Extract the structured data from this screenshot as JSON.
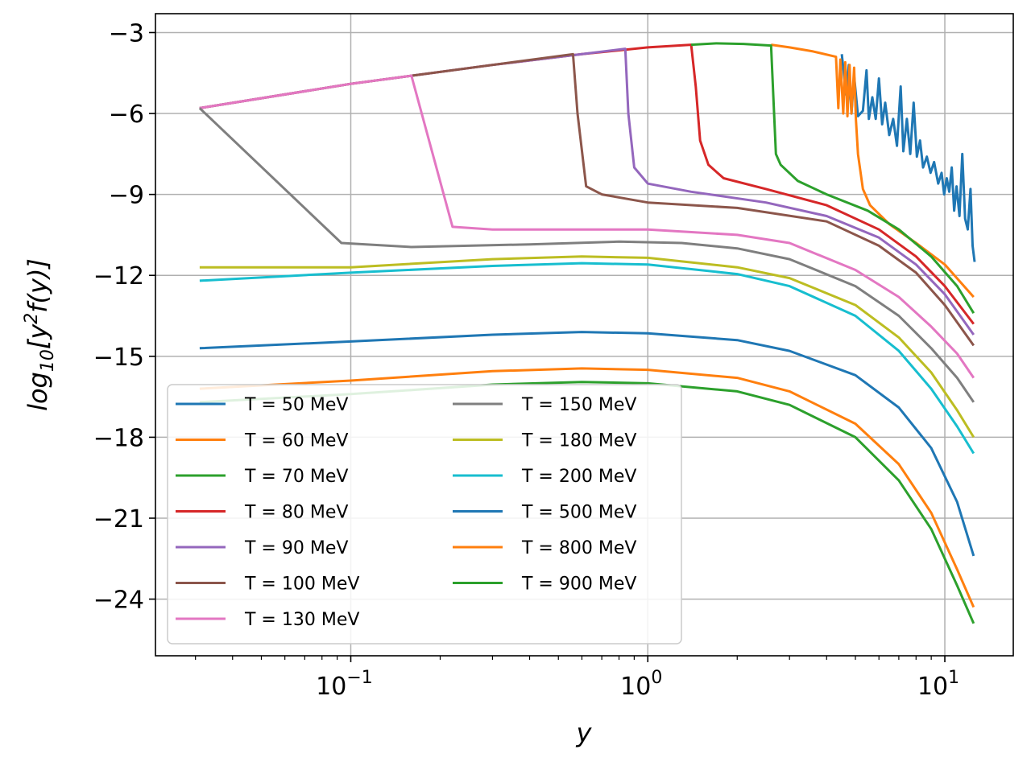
{
  "chart_data": {
    "type": "line",
    "title": "",
    "xlabel": "y",
    "ylabel": "log10[y^2 f(y)]",
    "xscale": "log",
    "xlim": [
      0.022,
      17
    ],
    "ylim": [
      -26.1,
      -2.3
    ],
    "grid": true,
    "legend_placement": "lower-left",
    "legend_columns": 2,
    "x_ticks": [
      {
        "value": 0.1,
        "base": "10",
        "exp": "−1"
      },
      {
        "value": 1,
        "base": "10",
        "exp": "0"
      },
      {
        "value": 10,
        "base": "10",
        "exp": "1"
      }
    ],
    "y_ticks": [
      {
        "value": -3,
        "label": "−3"
      },
      {
        "value": -6,
        "label": "−6"
      },
      {
        "value": -9,
        "label": "−9"
      },
      {
        "value": -12,
        "label": "−12"
      },
      {
        "value": -15,
        "label": "−15"
      },
      {
        "value": -18,
        "label": "−18"
      },
      {
        "value": -21,
        "label": "−21"
      },
      {
        "value": -24,
        "label": "−24"
      }
    ],
    "series": [
      {
        "name": "T = 50 MeV",
        "color": "#1f77b4",
        "points": [
          [
            0.031,
            -14.7
          ],
          [
            0.1,
            -14.45
          ],
          [
            0.3,
            -14.2
          ],
          [
            0.6,
            -14.1
          ],
          [
            1.0,
            -14.15
          ],
          [
            2.0,
            -14.4
          ],
          [
            3.0,
            -14.8
          ],
          [
            5.0,
            -15.7
          ],
          [
            7.0,
            -16.9
          ],
          [
            9.0,
            -18.4
          ],
          [
            11.0,
            -20.4
          ],
          [
            12.5,
            -22.4
          ]
        ]
      },
      {
        "name": "T = 60 MeV",
        "color": "#ff7f0e",
        "points": [
          [
            0.031,
            -16.2
          ],
          [
            0.1,
            -15.9
          ],
          [
            0.3,
            -15.55
          ],
          [
            0.6,
            -15.45
          ],
          [
            1.0,
            -15.5
          ],
          [
            2.0,
            -15.8
          ],
          [
            3.0,
            -16.3
          ],
          [
            5.0,
            -17.5
          ],
          [
            7.0,
            -19.0
          ],
          [
            9.0,
            -20.8
          ],
          [
            11.0,
            -22.9
          ],
          [
            12.5,
            -24.3
          ]
        ]
      },
      {
        "name": "T = 70 MeV",
        "color": "#2ca02c",
        "points": [
          [
            0.031,
            -16.7
          ],
          [
            0.1,
            -16.4
          ],
          [
            0.3,
            -16.05
          ],
          [
            0.6,
            -15.95
          ],
          [
            1.0,
            -16.0
          ],
          [
            2.0,
            -16.3
          ],
          [
            3.0,
            -16.8
          ],
          [
            5.0,
            -18.0
          ],
          [
            7.0,
            -19.6
          ],
          [
            9.0,
            -21.4
          ],
          [
            11.0,
            -23.5
          ],
          [
            12.5,
            -24.9
          ]
        ]
      },
      {
        "name": "T = 80 MeV",
        "color": "#d62728",
        "points": [
          [
            0.031,
            -5.8
          ],
          [
            0.1,
            -4.9
          ],
          [
            0.3,
            -4.2
          ],
          [
            0.6,
            -3.8
          ],
          [
            1.0,
            -3.55
          ],
          [
            1.4,
            -3.45
          ],
          [
            1.45,
            -5.0
          ],
          [
            1.5,
            -7.0
          ],
          [
            1.6,
            -7.9
          ],
          [
            1.8,
            -8.4
          ],
          [
            2.5,
            -8.8
          ],
          [
            4.0,
            -9.4
          ],
          [
            6.0,
            -10.3
          ],
          [
            8.0,
            -11.3
          ],
          [
            10.0,
            -12.4
          ],
          [
            12.5,
            -13.8
          ]
        ]
      },
      {
        "name": "T = 90 MeV",
        "color": "#9467bd",
        "points": [
          [
            0.031,
            -5.8
          ],
          [
            0.1,
            -4.9
          ],
          [
            0.3,
            -4.2
          ],
          [
            0.6,
            -3.8
          ],
          [
            0.84,
            -3.6
          ],
          [
            0.86,
            -6.0
          ],
          [
            0.9,
            -8.0
          ],
          [
            1.0,
            -8.6
          ],
          [
            1.4,
            -8.9
          ],
          [
            2.5,
            -9.3
          ],
          [
            4.0,
            -9.8
          ],
          [
            6.0,
            -10.6
          ],
          [
            8.0,
            -11.6
          ],
          [
            10.0,
            -12.7
          ],
          [
            12.5,
            -14.2
          ]
        ]
      },
      {
        "name": "T = 100 MeV",
        "color": "#8c564b",
        "points": [
          [
            0.031,
            -5.8
          ],
          [
            0.1,
            -4.9
          ],
          [
            0.3,
            -4.2
          ],
          [
            0.56,
            -3.8
          ],
          [
            0.58,
            -6.0
          ],
          [
            0.62,
            -8.7
          ],
          [
            0.7,
            -9.0
          ],
          [
            1.0,
            -9.3
          ],
          [
            2.0,
            -9.5
          ],
          [
            4.0,
            -10.0
          ],
          [
            6.0,
            -10.9
          ],
          [
            8.0,
            -11.9
          ],
          [
            10.0,
            -13.1
          ],
          [
            12.5,
            -14.6
          ]
        ]
      },
      {
        "name": "T = 130 MeV",
        "color": "#e377c2",
        "points": [
          [
            0.031,
            -5.8
          ],
          [
            0.1,
            -4.9
          ],
          [
            0.16,
            -4.6
          ],
          [
            0.22,
            -10.2
          ],
          [
            0.3,
            -10.3
          ],
          [
            1.0,
            -10.3
          ],
          [
            2.0,
            -10.5
          ],
          [
            3.0,
            -10.8
          ],
          [
            5.0,
            -11.8
          ],
          [
            7.0,
            -12.8
          ],
          [
            9.0,
            -13.9
          ],
          [
            11.0,
            -14.9
          ],
          [
            12.5,
            -15.8
          ]
        ]
      },
      {
        "name": "T = 150 MeV",
        "color": "#7f7f7f",
        "points": [
          [
            0.031,
            -5.8
          ],
          [
            0.093,
            -10.8
          ],
          [
            0.16,
            -10.95
          ],
          [
            0.4,
            -10.85
          ],
          [
            0.8,
            -10.75
          ],
          [
            1.3,
            -10.8
          ],
          [
            2.0,
            -11.0
          ],
          [
            3.0,
            -11.4
          ],
          [
            5.0,
            -12.4
          ],
          [
            7.0,
            -13.5
          ],
          [
            9.0,
            -14.7
          ],
          [
            11.0,
            -15.8
          ],
          [
            12.5,
            -16.7
          ]
        ]
      },
      {
        "name": "T = 180 MeV",
        "color": "#bcbd22",
        "points": [
          [
            0.031,
            -11.7
          ],
          [
            0.1,
            -11.7
          ],
          [
            0.3,
            -11.4
          ],
          [
            0.6,
            -11.3
          ],
          [
            1.0,
            -11.35
          ],
          [
            2.0,
            -11.7
          ],
          [
            3.0,
            -12.1
          ],
          [
            5.0,
            -13.1
          ],
          [
            7.0,
            -14.3
          ],
          [
            9.0,
            -15.6
          ],
          [
            11.0,
            -17.0
          ],
          [
            12.5,
            -18.0
          ]
        ]
      },
      {
        "name": "T = 200 MeV",
        "color": "#17becf",
        "points": [
          [
            0.031,
            -12.2
          ],
          [
            0.1,
            -11.9
          ],
          [
            0.3,
            -11.65
          ],
          [
            0.6,
            -11.55
          ],
          [
            1.0,
            -11.6
          ],
          [
            2.0,
            -11.95
          ],
          [
            3.0,
            -12.4
          ],
          [
            5.0,
            -13.5
          ],
          [
            7.0,
            -14.8
          ],
          [
            9.0,
            -16.2
          ],
          [
            11.0,
            -17.6
          ],
          [
            12.5,
            -18.6
          ]
        ]
      },
      {
        "name": "T = 500 MeV",
        "color": "#1f77b4",
        "points": [
          [
            4.5,
            -3.8
          ],
          [
            4.65,
            -5.3
          ],
          [
            4.75,
            -4.2
          ],
          [
            4.85,
            -6.0
          ],
          [
            4.95,
            -4.6
          ],
          [
            5.1,
            -6.1
          ],
          [
            5.3,
            -5.9
          ],
          [
            5.45,
            -4.4
          ],
          [
            5.55,
            -6.2
          ],
          [
            5.7,
            -5.4
          ],
          [
            5.85,
            -6.2
          ],
          [
            6.0,
            -4.7
          ],
          [
            6.15,
            -6.4
          ],
          [
            6.3,
            -5.6
          ],
          [
            6.5,
            -6.8
          ],
          [
            6.7,
            -6.2
          ],
          [
            6.9,
            -7.2
          ],
          [
            7.1,
            -5.0
          ],
          [
            7.25,
            -7.4
          ],
          [
            7.45,
            -6.2
          ],
          [
            7.65,
            -7.5
          ],
          [
            7.85,
            -5.6
          ],
          [
            8.05,
            -7.6
          ],
          [
            8.25,
            -7.0
          ],
          [
            8.45,
            -8.0
          ],
          [
            8.7,
            -7.6
          ],
          [
            8.95,
            -8.2
          ],
          [
            9.2,
            -7.8
          ],
          [
            9.5,
            -8.6
          ],
          [
            9.75,
            -8.2
          ],
          [
            9.95,
            -9.0
          ],
          [
            10.15,
            -8.4
          ],
          [
            10.35,
            -8.9
          ],
          [
            10.55,
            -8.0
          ],
          [
            10.75,
            -9.6
          ],
          [
            10.95,
            -8.7
          ],
          [
            11.2,
            -9.8
          ],
          [
            11.45,
            -7.5
          ],
          [
            11.7,
            -9.9
          ],
          [
            11.95,
            -10.3
          ],
          [
            12.2,
            -8.8
          ],
          [
            12.4,
            -10.9
          ],
          [
            12.6,
            -11.5
          ]
        ]
      },
      {
        "name": "T = 800 MeV",
        "color": "#ff7f0e",
        "points": [
          [
            2.6,
            -3.45
          ],
          [
            3.0,
            -3.55
          ],
          [
            3.6,
            -3.7
          ],
          [
            4.3,
            -3.9
          ],
          [
            4.38,
            -5.8
          ],
          [
            4.45,
            -4.0
          ],
          [
            4.55,
            -6.0
          ],
          [
            4.62,
            -4.1
          ],
          [
            4.7,
            -6.1
          ],
          [
            4.78,
            -4.2
          ],
          [
            4.85,
            -6.0
          ],
          [
            4.95,
            -4.3
          ],
          [
            5.02,
            -6.2
          ],
          [
            5.1,
            -7.5
          ],
          [
            5.3,
            -8.8
          ],
          [
            5.6,
            -9.4
          ],
          [
            6.5,
            -10.1
          ],
          [
            8.0,
            -10.8
          ],
          [
            10.0,
            -11.6
          ],
          [
            12.5,
            -12.8
          ]
        ]
      },
      {
        "name": "T = 900 MeV",
        "color": "#2ca02c",
        "points": [
          [
            1.4,
            -3.45
          ],
          [
            1.7,
            -3.4
          ],
          [
            2.1,
            -3.42
          ],
          [
            2.6,
            -3.48
          ],
          [
            2.65,
            -5.5
          ],
          [
            2.7,
            -7.5
          ],
          [
            2.8,
            -7.9
          ],
          [
            3.2,
            -8.5
          ],
          [
            4.0,
            -9.0
          ],
          [
            5.5,
            -9.6
          ],
          [
            7.0,
            -10.3
          ],
          [
            9.0,
            -11.3
          ],
          [
            11.0,
            -12.4
          ],
          [
            12.5,
            -13.4
          ]
        ]
      }
    ]
  }
}
